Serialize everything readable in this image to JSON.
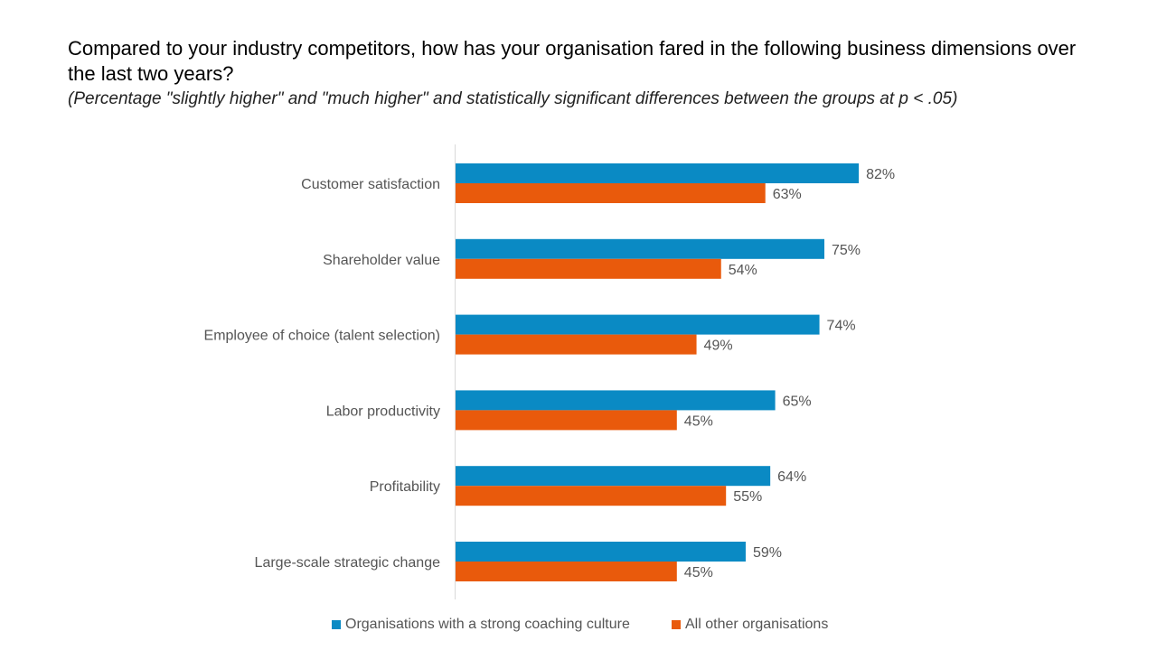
{
  "title": "Compared to your industry competitors, how has your organisation fared in the following business dimensions over the last two years?",
  "subtitle": "(Percentage \"slightly higher\" and \"much higher\" and statistically significant differences between the groups at p < .05)",
  "colors": {
    "series_1": "#0a8ac4",
    "series_2": "#e95a0c",
    "label_text": "#555555",
    "axis_line": "#d9d9d9"
  },
  "chart_data": {
    "type": "bar",
    "orientation": "horizontal",
    "title": "Compared to your industry competitors, how has your organisation fared in the following business dimensions over the last two years?",
    "subtitle": "(Percentage \"slightly higher\" and \"much higher\" and statistically significant differences between the groups at p < .05)",
    "categories": [
      "Customer satisfaction",
      "Shareholder value",
      "Employee of choice (talent selection)",
      "Labor productivity",
      "Profitability",
      "Large-scale strategic change"
    ],
    "series": [
      {
        "name": "Organisations with a strong coaching culture",
        "values": [
          82,
          75,
          74,
          65,
          64,
          59
        ],
        "labels": [
          "82%",
          "75%",
          "74%",
          "65%",
          "64%",
          "59%"
        ]
      },
      {
        "name": "All other organisations",
        "values": [
          63,
          54,
          49,
          45,
          55,
          45
        ],
        "labels": [
          "63%",
          "54%",
          "49%",
          "45%",
          "55%",
          "45%"
        ]
      }
    ],
    "value_unit": "%",
    "xlim": [
      0,
      100
    ],
    "grid": false,
    "legend_position": "bottom"
  },
  "legend": {
    "items": [
      "Organisations with a strong coaching culture",
      "All other organisations"
    ]
  }
}
